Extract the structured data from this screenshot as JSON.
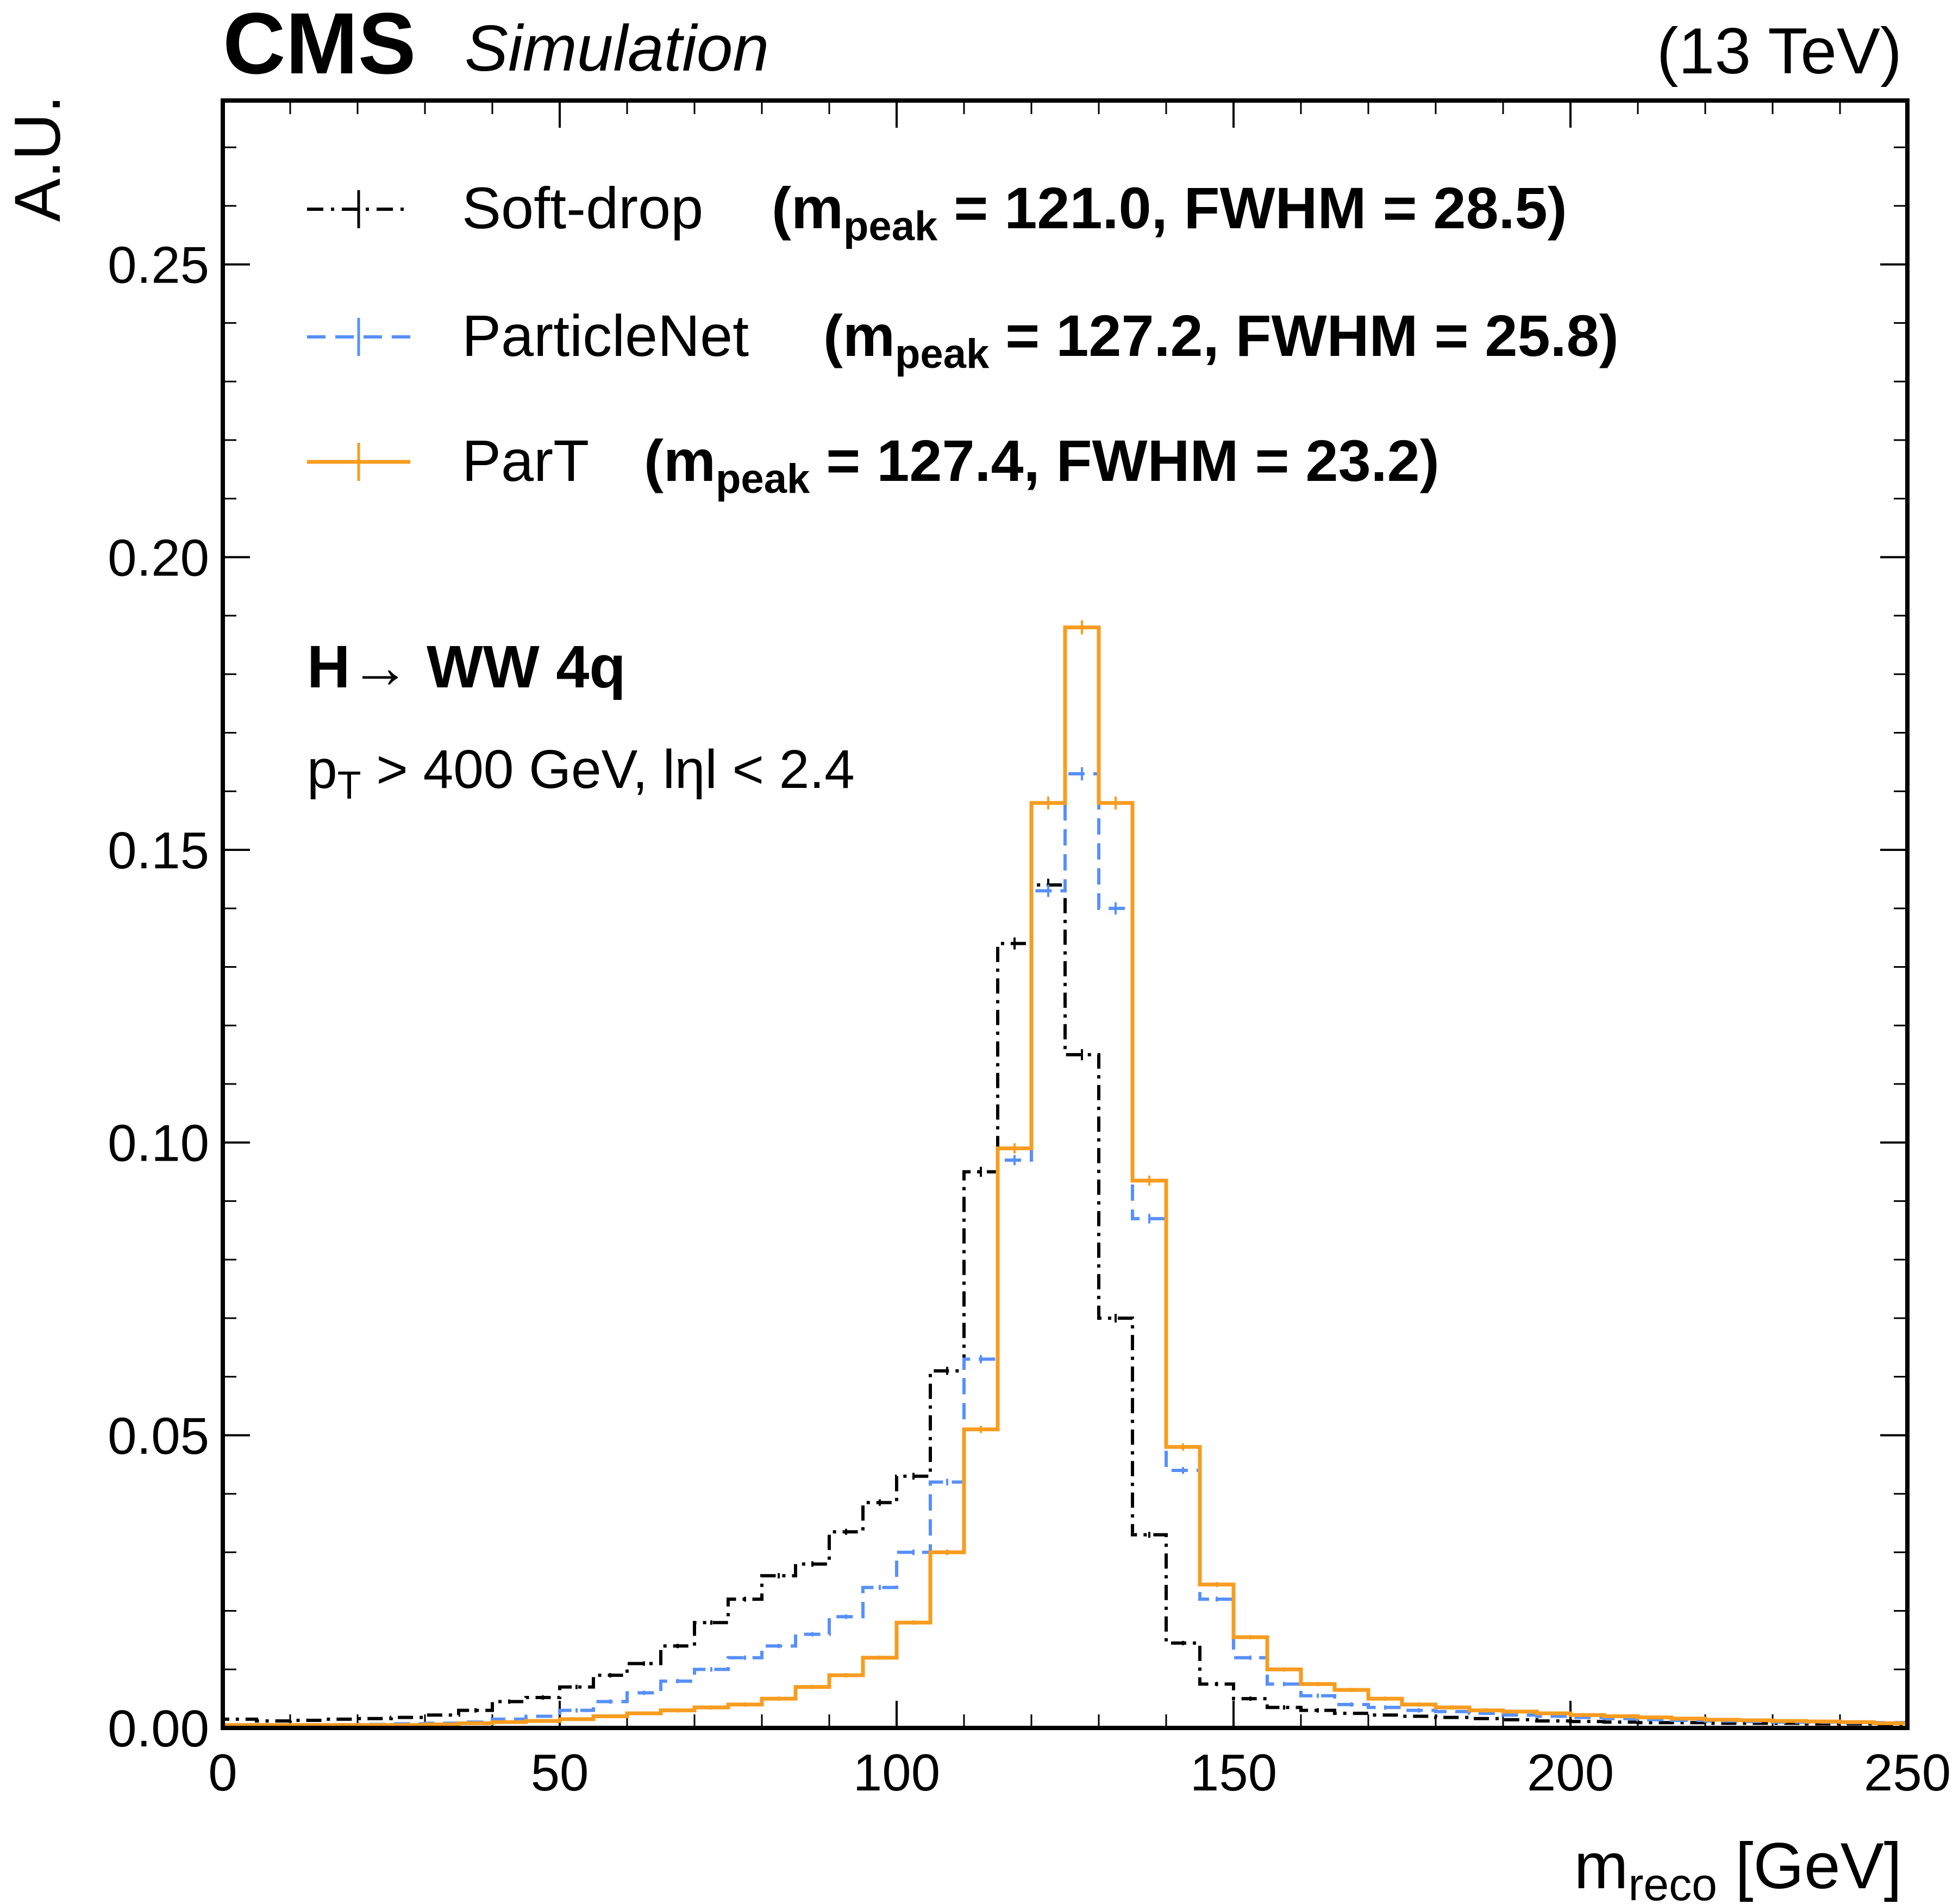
{
  "header": {
    "experiment": "CMS",
    "tag": "Simulation",
    "energy": "(13 TeV)"
  },
  "annotations": {
    "process": "H→  WW 4q",
    "cuts_prefix": "p",
    "cuts_sub": "T",
    "cuts_rest": " > 400 GeV,  lηl < 2.4"
  },
  "legend": [
    {
      "label": "Soft-drop",
      "stats": "(m",
      "sub": "peak",
      "rest": " = 121.0,  FWHM = 28.5)"
    },
    {
      "label": "ParticleNet",
      "stats": "(m",
      "sub": "peak",
      "rest": " = 127.2,  FWHM = 25.8)"
    },
    {
      "label": "ParT",
      "stats": "(m",
      "sub": "peak",
      "rest": " = 127.4,  FWHM = 23.2)"
    }
  ],
  "chart_data": {
    "type": "histogram-step",
    "xlabel": "m",
    "xlabel_sub": "reco",
    "xlabel_unit": " [GeV]",
    "ylabel": "A.U.",
    "xlim": [
      0,
      250
    ],
    "ylim": [
      0,
      0.278
    ],
    "xticks": [
      0,
      50,
      100,
      150,
      200,
      250
    ],
    "yticks": [
      0.0,
      0.05,
      0.1,
      0.15,
      0.2,
      0.25
    ],
    "ytick_labels": [
      "0.00",
      "0.05",
      "0.10",
      "0.15",
      "0.20",
      "0.25"
    ],
    "bin_edges": [
      0,
      5,
      10,
      15,
      20,
      25,
      30,
      35,
      40,
      45,
      50,
      55,
      60,
      65,
      70,
      75,
      80,
      85,
      90,
      95,
      100,
      105,
      110,
      115,
      120,
      125,
      130,
      135,
      140,
      145,
      150,
      155,
      160,
      165,
      170,
      175,
      180,
      185,
      190,
      195,
      200,
      205,
      210,
      215,
      220,
      225,
      230,
      235,
      240,
      245,
      250
    ],
    "series": [
      {
        "name": "Soft-drop",
        "color": "#000000",
        "style": "dash-dot",
        "values": [
          0.0015,
          0.0012,
          0.0013,
          0.0015,
          0.0016,
          0.0018,
          0.0022,
          0.003,
          0.0045,
          0.0052,
          0.007,
          0.009,
          0.011,
          0.014,
          0.018,
          0.022,
          0.026,
          0.028,
          0.0335,
          0.0385,
          0.043,
          0.061,
          0.095,
          0.134,
          0.144,
          0.115,
          0.07,
          0.033,
          0.0145,
          0.0075,
          0.005,
          0.0035,
          0.003,
          0.0025,
          0.0022,
          0.002,
          0.0018,
          0.0016,
          0.0014,
          0.0012,
          0.0011,
          0.001,
          0.0009,
          0.0009,
          0.0008,
          0.0008,
          0.0008,
          0.0007,
          0.0007,
          0.0006
        ]
      },
      {
        "name": "ParticleNet",
        "color": "#5790fc",
        "style": "dashed",
        "values": [
          0.0005,
          0.0005,
          0.0005,
          0.0005,
          0.0006,
          0.0007,
          0.0008,
          0.001,
          0.0015,
          0.002,
          0.003,
          0.0045,
          0.006,
          0.008,
          0.01,
          0.012,
          0.014,
          0.016,
          0.019,
          0.024,
          0.03,
          0.042,
          0.063,
          0.097,
          0.143,
          0.163,
          0.14,
          0.087,
          0.044,
          0.022,
          0.012,
          0.0075,
          0.0055,
          0.004,
          0.0035,
          0.003,
          0.0028,
          0.0025,
          0.0022,
          0.002,
          0.0018,
          0.0016,
          0.0014,
          0.0013,
          0.0012,
          0.0011,
          0.001,
          0.001,
          0.0009,
          0.0009
        ]
      },
      {
        "name": "ParT",
        "color": "#f89c20",
        "style": "solid",
        "values": [
          0.0005,
          0.0005,
          0.0005,
          0.0005,
          0.0005,
          0.0005,
          0.0006,
          0.0008,
          0.001,
          0.0012,
          0.0015,
          0.002,
          0.0025,
          0.003,
          0.0035,
          0.004,
          0.005,
          0.007,
          0.009,
          0.012,
          0.018,
          0.03,
          0.051,
          0.099,
          0.158,
          0.188,
          0.158,
          0.0935,
          0.048,
          0.0245,
          0.0155,
          0.01,
          0.0075,
          0.0065,
          0.005,
          0.004,
          0.0035,
          0.003,
          0.0028,
          0.0025,
          0.0022,
          0.002,
          0.0018,
          0.0016,
          0.0014,
          0.0013,
          0.0012,
          0.0011,
          0.001,
          0.0008
        ]
      }
    ]
  }
}
